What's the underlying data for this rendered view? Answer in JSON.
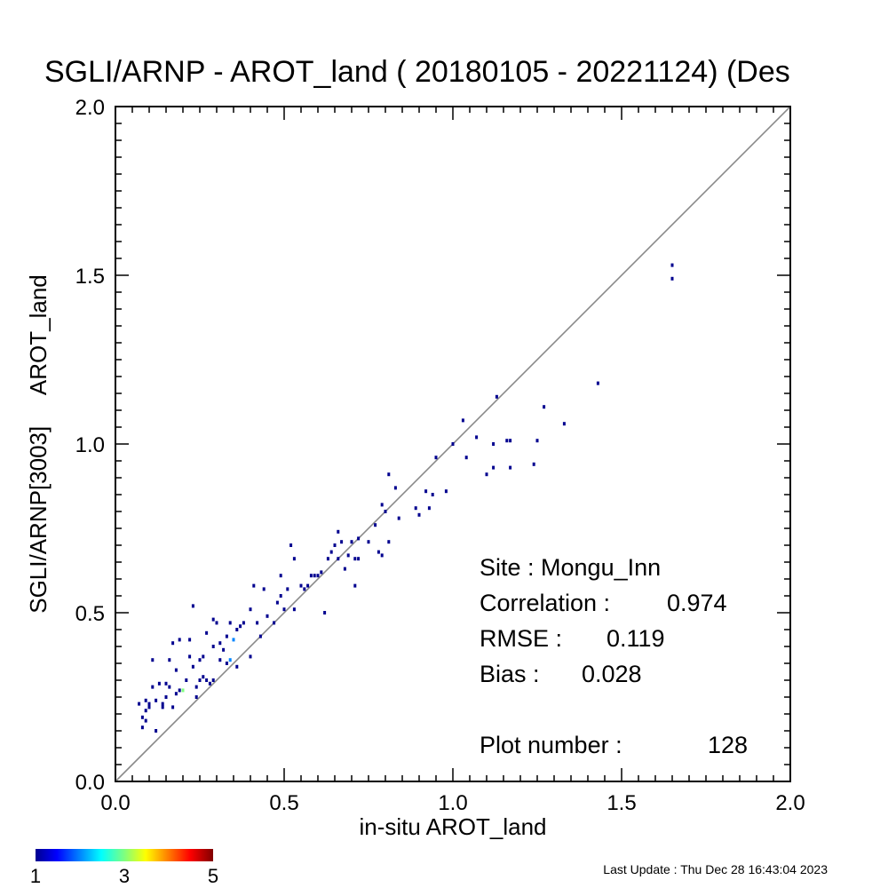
{
  "chart_data": {
    "type": "scatter",
    "title": "SGLI/ARNP - AROT_land ( 20180105 - 20221124) (Des",
    "xlabel": "in-situ AROT_land",
    "ylabel": "SGLI/ARNP[3003]     AROT_land",
    "xlim": [
      0.0,
      2.0
    ],
    "ylim": [
      0.0,
      2.0
    ],
    "x_ticks": [
      "0.0",
      "0.5",
      "1.0",
      "1.5",
      "2.0"
    ],
    "y_ticks": [
      "0.0",
      "0.5",
      "1.0",
      "1.5",
      "2.0"
    ],
    "grid": false,
    "reference_line": "1:1",
    "colormap": "jet",
    "colorbar_range": [
      1,
      5
    ],
    "colorbar_ticks": [
      "1",
      "3",
      "5"
    ],
    "stats": {
      "site": "Site : Mongu_Inn",
      "correlation_label": "Correlation :",
      "correlation_value": "0.974",
      "rmse_label": "RMSE :",
      "rmse_value": "0.119",
      "bias_label": "Bias :",
      "bias_value": "0.028",
      "plot_number_label": "Plot number :",
      "plot_number_value": "128"
    },
    "points": [
      [
        0.07,
        0.23,
        1
      ],
      [
        0.08,
        0.16,
        1
      ],
      [
        0.08,
        0.19,
        1
      ],
      [
        0.09,
        0.21,
        1
      ],
      [
        0.09,
        0.24,
        1
      ],
      [
        0.1,
        0.22,
        1
      ],
      [
        0.1,
        0.23,
        1
      ],
      [
        0.11,
        0.36,
        1
      ],
      [
        0.11,
        0.28,
        1
      ],
      [
        0.12,
        0.15,
        1
      ],
      [
        0.13,
        0.29,
        1
      ],
      [
        0.14,
        0.22,
        1
      ],
      [
        0.14,
        0.23,
        1
      ],
      [
        0.15,
        0.29,
        1
      ],
      [
        0.16,
        0.28,
        1
      ],
      [
        0.16,
        0.36,
        1
      ],
      [
        0.17,
        0.22,
        1
      ],
      [
        0.17,
        0.41,
        1
      ],
      [
        0.18,
        0.33,
        1
      ],
      [
        0.18,
        0.26,
        1
      ],
      [
        0.19,
        0.42,
        1
      ],
      [
        0.19,
        0.27,
        1
      ],
      [
        0.2,
        0.27,
        3
      ],
      [
        0.21,
        0.3,
        1
      ],
      [
        0.22,
        0.42,
        1
      ],
      [
        0.22,
        0.37,
        1
      ],
      [
        0.23,
        0.34,
        1
      ],
      [
        0.23,
        0.52,
        1
      ],
      [
        0.24,
        0.25,
        1
      ],
      [
        0.24,
        0.28,
        1
      ],
      [
        0.25,
        0.3,
        1
      ],
      [
        0.25,
        0.36,
        1
      ],
      [
        0.26,
        0.37,
        1
      ],
      [
        0.27,
        0.44,
        1
      ],
      [
        0.27,
        0.3,
        1
      ],
      [
        0.28,
        0.29,
        1
      ],
      [
        0.29,
        0.3,
        1
      ],
      [
        0.29,
        0.4,
        1
      ],
      [
        0.29,
        0.48,
        1
      ],
      [
        0.3,
        0.47,
        1
      ],
      [
        0.31,
        0.41,
        1
      ],
      [
        0.31,
        0.36,
        1
      ],
      [
        0.32,
        0.39,
        1
      ],
      [
        0.33,
        0.43,
        1
      ],
      [
        0.33,
        0.35,
        1
      ],
      [
        0.34,
        0.36,
        2
      ],
      [
        0.34,
        0.47,
        1
      ],
      [
        0.35,
        0.42,
        2
      ],
      [
        0.36,
        0.34,
        1
      ],
      [
        0.37,
        0.46,
        1
      ],
      [
        0.38,
        0.47,
        1
      ],
      [
        0.4,
        0.37,
        1
      ],
      [
        0.4,
        0.51,
        1
      ],
      [
        0.41,
        0.58,
        1
      ],
      [
        0.42,
        0.47,
        1
      ],
      [
        0.43,
        0.43,
        1
      ],
      [
        0.44,
        0.57,
        1
      ],
      [
        0.45,
        0.49,
        1
      ],
      [
        0.47,
        0.47,
        1
      ],
      [
        0.48,
        0.53,
        1
      ],
      [
        0.49,
        0.61,
        1
      ],
      [
        0.49,
        0.55,
        1
      ],
      [
        0.5,
        0.51,
        1
      ],
      [
        0.51,
        0.57,
        1
      ],
      [
        0.52,
        0.7,
        1
      ],
      [
        0.53,
        0.51,
        1
      ],
      [
        0.53,
        0.66,
        1
      ],
      [
        0.56,
        0.57,
        1
      ],
      [
        0.57,
        0.58,
        1
      ],
      [
        0.58,
        0.61,
        1
      ],
      [
        0.59,
        0.61,
        1
      ],
      [
        0.6,
        0.61,
        1
      ],
      [
        0.61,
        0.62,
        1
      ],
      [
        0.62,
        0.5,
        1
      ],
      [
        0.63,
        0.66,
        1
      ],
      [
        0.64,
        0.68,
        1
      ],
      [
        0.65,
        0.7,
        1
      ],
      [
        0.66,
        0.74,
        1
      ],
      [
        0.66,
        0.66,
        1
      ],
      [
        0.67,
        0.71,
        1
      ],
      [
        0.69,
        0.67,
        1
      ],
      [
        0.7,
        0.71,
        1
      ],
      [
        0.71,
        0.58,
        1
      ],
      [
        0.71,
        0.66,
        1
      ],
      [
        0.72,
        0.66,
        1
      ],
      [
        0.72,
        0.72,
        1
      ],
      [
        0.75,
        0.71,
        1
      ],
      [
        0.77,
        0.76,
        1
      ],
      [
        0.78,
        0.68,
        1
      ],
      [
        0.79,
        0.67,
        1
      ],
      [
        0.79,
        0.82,
        1
      ],
      [
        0.8,
        0.8,
        1
      ],
      [
        0.81,
        0.71,
        1
      ],
      [
        0.81,
        0.91,
        1
      ],
      [
        0.83,
        0.87,
        1
      ],
      [
        0.84,
        0.78,
        1
      ],
      [
        0.89,
        0.81,
        1
      ],
      [
        0.9,
        0.79,
        1
      ],
      [
        0.92,
        0.86,
        1
      ],
      [
        0.93,
        0.81,
        1
      ],
      [
        0.94,
        0.85,
        1
      ],
      [
        0.95,
        0.96,
        1
      ],
      [
        0.98,
        0.86,
        1
      ],
      [
        1.0,
        1.0,
        1
      ],
      [
        1.03,
        1.07,
        1
      ],
      [
        1.04,
        0.96,
        1
      ],
      [
        1.07,
        1.02,
        1
      ],
      [
        1.1,
        0.91,
        1
      ],
      [
        1.12,
        0.93,
        1
      ],
      [
        1.12,
        1.0,
        1
      ],
      [
        1.13,
        1.14,
        1
      ],
      [
        1.16,
        1.01,
        1
      ],
      [
        1.17,
        1.01,
        1
      ],
      [
        1.17,
        0.93,
        1
      ],
      [
        1.24,
        0.94,
        1
      ],
      [
        1.25,
        1.01,
        1
      ],
      [
        1.27,
        1.11,
        1
      ],
      [
        1.33,
        1.06,
        1
      ],
      [
        1.43,
        1.18,
        1
      ],
      [
        1.65,
        1.49,
        1
      ],
      [
        1.65,
        1.53,
        1
      ],
      [
        0.09,
        0.18,
        1
      ],
      [
        0.12,
        0.24,
        1
      ],
      [
        0.15,
        0.25,
        1
      ],
      [
        0.26,
        0.31,
        1
      ],
      [
        0.36,
        0.45,
        1
      ],
      [
        0.55,
        0.58,
        1
      ],
      [
        0.68,
        0.63,
        1
      ]
    ]
  },
  "footer": {
    "last_update": "Last Update : Thu Dec 28 16:43:04 2023"
  }
}
